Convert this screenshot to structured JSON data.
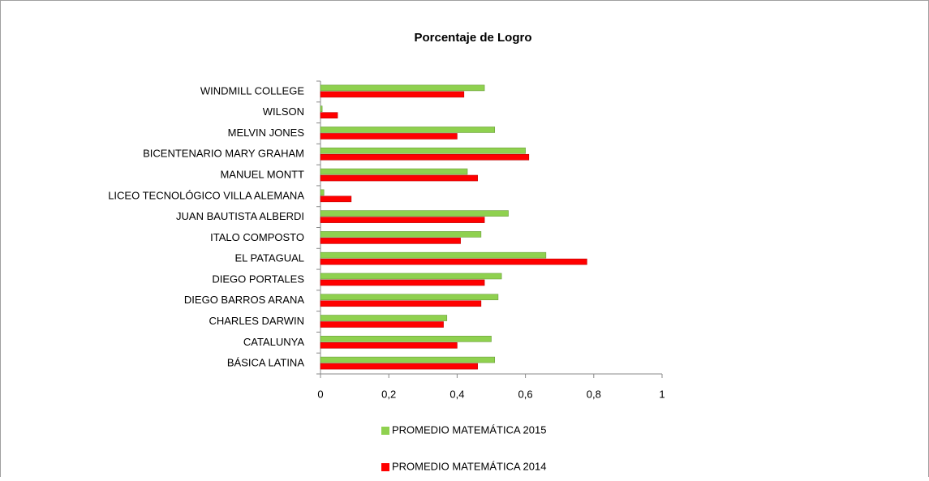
{
  "chart_data": {
    "type": "barh",
    "title": "Porcentaje de Logro",
    "categories": [
      "WINDMILL COLLEGE",
      "WILSON",
      "MELVIN JONES",
      "BICENTENARIO MARY GRAHAM",
      "MANUEL MONTT",
      "LICEO TECNOLÓGICO VILLA ALEMANA",
      "JUAN BAUTISTA ALBERDI",
      "ITALO COMPOSTO",
      "EL PATAGUAL",
      "DIEGO PORTALES",
      "DIEGO BARROS ARANA",
      "CHARLES DARWIN",
      "CATALUNYA",
      "BÁSICA LATINA"
    ],
    "series": [
      {
        "name": "PROMEDIO MATEMÁTICA 2015",
        "color": "#8fd14f",
        "values": [
          0.48,
          0.005,
          0.51,
          0.6,
          0.43,
          0.01,
          0.55,
          0.47,
          0.66,
          0.53,
          0.52,
          0.37,
          0.5,
          0.51
        ]
      },
      {
        "name": "PROMEDIO MATEMÁTICA 2014",
        "color": "#ff0000",
        "values": [
          0.42,
          0.05,
          0.4,
          0.61,
          0.46,
          0.09,
          0.48,
          0.41,
          0.78,
          0.48,
          0.47,
          0.36,
          0.4,
          0.46
        ]
      }
    ],
    "xlim": [
      0,
      1
    ],
    "xticks": [
      0,
      {
        "value": 0.2,
        "label": "0,2"
      },
      {
        "value": 0.4,
        "label": "0,4"
      },
      {
        "value": 0.6,
        "label": "0,6"
      },
      {
        "value": 0.8,
        "label": "0,8"
      },
      1
    ]
  }
}
